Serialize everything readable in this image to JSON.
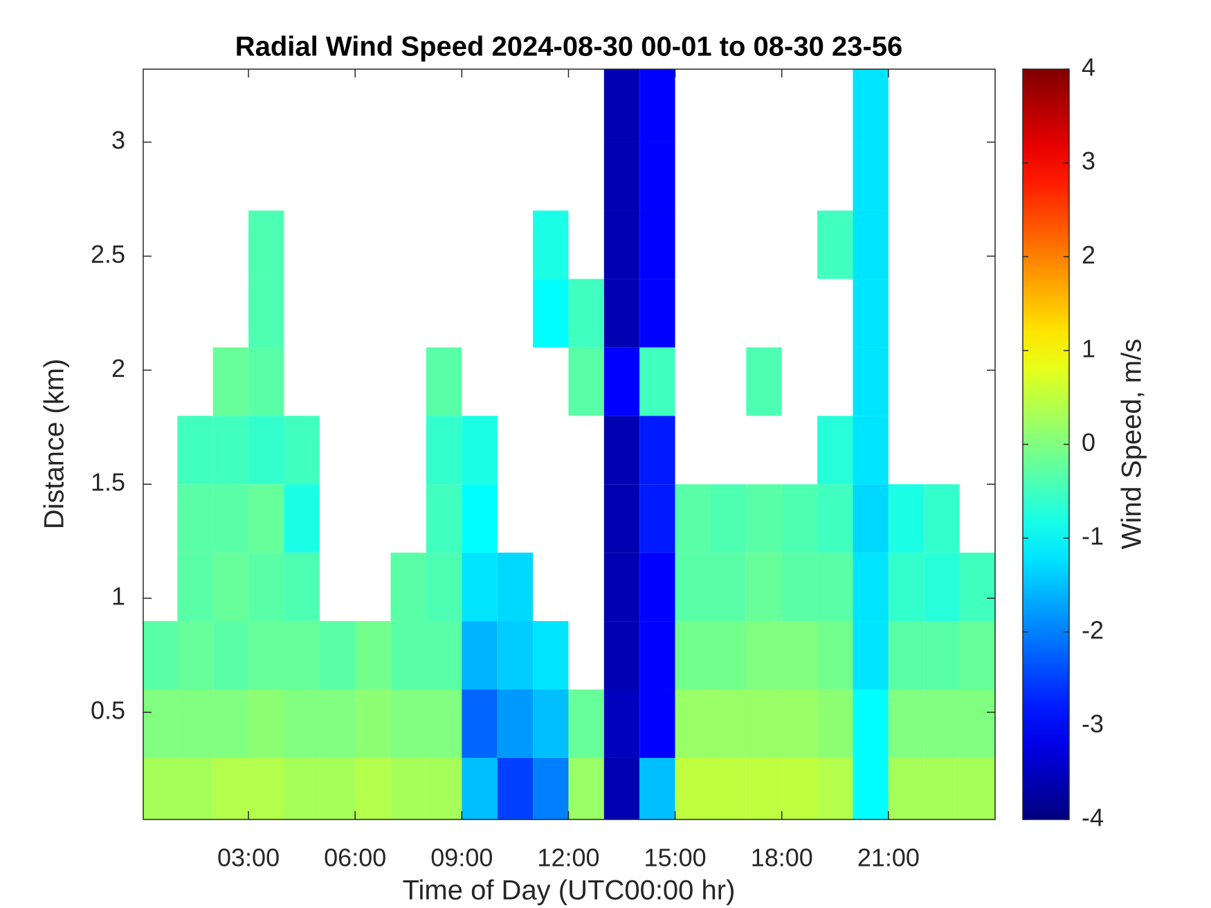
{
  "chart_data": {
    "type": "heatmap",
    "title": "Radial Wind Speed 2024-08-30 00-01 to 08-30 23-56",
    "x_label": "Time of Day (UTC00:00 hr)",
    "y_label": "Distance (km)",
    "colorbar_label": "Wind Speed, m/s",
    "colormap": "jet",
    "clim": [
      -4,
      4
    ],
    "cticks": [
      -4,
      -3,
      -2,
      -1,
      0,
      1,
      2,
      3,
      4
    ],
    "xlim": [
      0.04,
      24.0
    ],
    "ylim": [
      0.03,
      3.32
    ],
    "xticks": [
      {
        "value": 3,
        "label": "03:00"
      },
      {
        "value": 6,
        "label": "06:00"
      },
      {
        "value": 9,
        "label": "09:00"
      },
      {
        "value": 12,
        "label": "12:00"
      },
      {
        "value": 15,
        "label": "15:00"
      },
      {
        "value": 18,
        "label": "18:00"
      },
      {
        "value": 21,
        "label": "21:00"
      }
    ],
    "yticks": [
      0.5,
      1,
      1.5,
      2,
      2.5,
      3
    ],
    "x_bins": [
      0,
      1,
      2,
      3,
      4,
      5,
      6,
      7,
      8,
      9,
      10,
      11,
      12,
      13,
      14,
      15,
      16,
      17,
      18,
      19,
      20,
      21,
      22,
      23,
      24
    ],
    "y_bins": [
      0.03,
      0.3,
      0.6,
      0.9,
      1.2,
      1.5,
      1.8,
      2.1,
      2.4,
      2.7,
      3.0,
      3.32
    ],
    "values": [
      [
        0.3,
        0,
        -0.3,
        null,
        null,
        null,
        null,
        null,
        null,
        null,
        null
      ],
      [
        0.3,
        0,
        -0.2,
        -0.3,
        -0.3,
        -0.5,
        null,
        null,
        null,
        null,
        null
      ],
      [
        0.4,
        0,
        -0.3,
        -0.2,
        -0.3,
        -0.5,
        -0.2,
        null,
        null,
        null,
        null
      ],
      [
        0.4,
        0.1,
        -0.2,
        -0.3,
        -0.2,
        -0.6,
        -0.3,
        -0.4,
        -0.4,
        null,
        null
      ],
      [
        0.3,
        0,
        -0.2,
        -0.4,
        -0.8,
        -0.5,
        null,
        null,
        null,
        null,
        null
      ],
      [
        0.3,
        0,
        -0.3,
        null,
        null,
        null,
        null,
        null,
        null,
        null,
        null
      ],
      [
        0.4,
        0.1,
        -0.1,
        null,
        null,
        null,
        null,
        null,
        null,
        null,
        null
      ],
      [
        0.3,
        0,
        -0.3,
        -0.3,
        null,
        null,
        null,
        null,
        null,
        null,
        null
      ],
      [
        0.3,
        0,
        -0.3,
        -0.4,
        -0.5,
        -0.6,
        -0.3,
        null,
        null,
        null,
        null
      ],
      [
        -1.5,
        -2.2,
        -1.6,
        -1.2,
        -1.0,
        -0.8,
        null,
        null,
        null,
        null,
        null
      ],
      [
        -2.5,
        -1.8,
        -1.4,
        -1.3,
        null,
        null,
        null,
        null,
        null,
        null,
        null
      ],
      [
        -2.0,
        -1.5,
        -1.2,
        null,
        null,
        null,
        null,
        -1.0,
        -0.8,
        null,
        null
      ],
      [
        0.2,
        -0.2,
        null,
        null,
        null,
        null,
        -0.3,
        -0.5,
        null,
        null,
        null
      ],
      [
        -3.6,
        -3.5,
        -3.6,
        -3.6,
        -3.6,
        -3.6,
        -3.0,
        -3.6,
        -3.6,
        -3.6,
        -3.6
      ],
      [
        -1.5,
        -3.0,
        -3.0,
        -3.0,
        -2.8,
        -2.8,
        -0.5,
        -3.0,
        -3.0,
        -3.0,
        -3.0
      ],
      [
        0.5,
        0.2,
        -0.1,
        -0.3,
        -0.3,
        null,
        null,
        null,
        null,
        null,
        null
      ],
      [
        0.5,
        0.2,
        -0.1,
        -0.3,
        -0.4,
        null,
        null,
        null,
        null,
        null,
        null
      ],
      [
        0.5,
        0.2,
        0,
        -0.2,
        -0.3,
        null,
        -0.4,
        null,
        null,
        null,
        null
      ],
      [
        0.5,
        0.2,
        0,
        -0.3,
        -0.4,
        null,
        null,
        null,
        null,
        null,
        null
      ],
      [
        0.4,
        0.1,
        -0.1,
        -0.3,
        -0.5,
        -0.7,
        null,
        null,
        -0.5,
        null,
        null
      ],
      [
        -1.0,
        -1.0,
        -1.2,
        -1.2,
        -1.3,
        -1.2,
        -1.2,
        -1.2,
        -1.2,
        -1.2,
        -1.2
      ],
      [
        0.3,
        0,
        -0.3,
        -0.6,
        -0.8,
        null,
        null,
        null,
        null,
        null,
        null
      ],
      [
        0.3,
        0,
        -0.3,
        -0.7,
        -0.6,
        null,
        null,
        null,
        null,
        null,
        null
      ],
      [
        0.3,
        0,
        -0.2,
        -0.5,
        null,
        null,
        null,
        null,
        null,
        null,
        null
      ]
    ]
  }
}
